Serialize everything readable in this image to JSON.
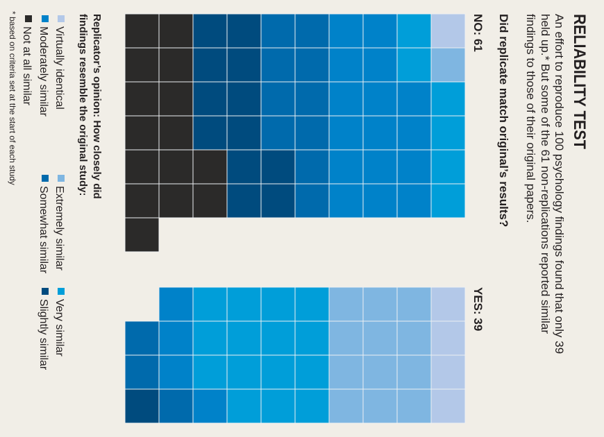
{
  "chart_data": {
    "type": "waffle",
    "title": "RELIABILITY TEST",
    "subtitle": [
      "An effort to reproduce 100 psychology findings found that only 39",
      "held up.* But some of the 61 non-replications reported similar",
      "findings to those of their original papers."
    ],
    "question": "Did replicate match original’s results?",
    "legend_title": [
      "Replicator’s opinion: How closely did",
      "findings resemble the original study:"
    ],
    "categories": [
      "Virtually identical",
      "Extremely similar",
      "Very similar",
      "Moderately similar",
      "Somewhat similar",
      "Slightly similar",
      "Not at all similar"
    ],
    "colors": [
      "#b3c8e8",
      "#7fb6e1",
      "#009ed9",
      "#0082c9",
      "#006aac",
      "#004b7e",
      "#2b2a29"
    ],
    "groups": [
      {
        "name": "NO: 61",
        "values": [
          1,
          1,
          6,
          16,
          10,
          12,
          15
        ]
      },
      {
        "name": "YES: 39",
        "values": [
          4,
          12,
          15,
          4,
          3,
          1,
          0
        ]
      }
    ],
    "footnote": "* based on criteria set at the start of each study"
  }
}
